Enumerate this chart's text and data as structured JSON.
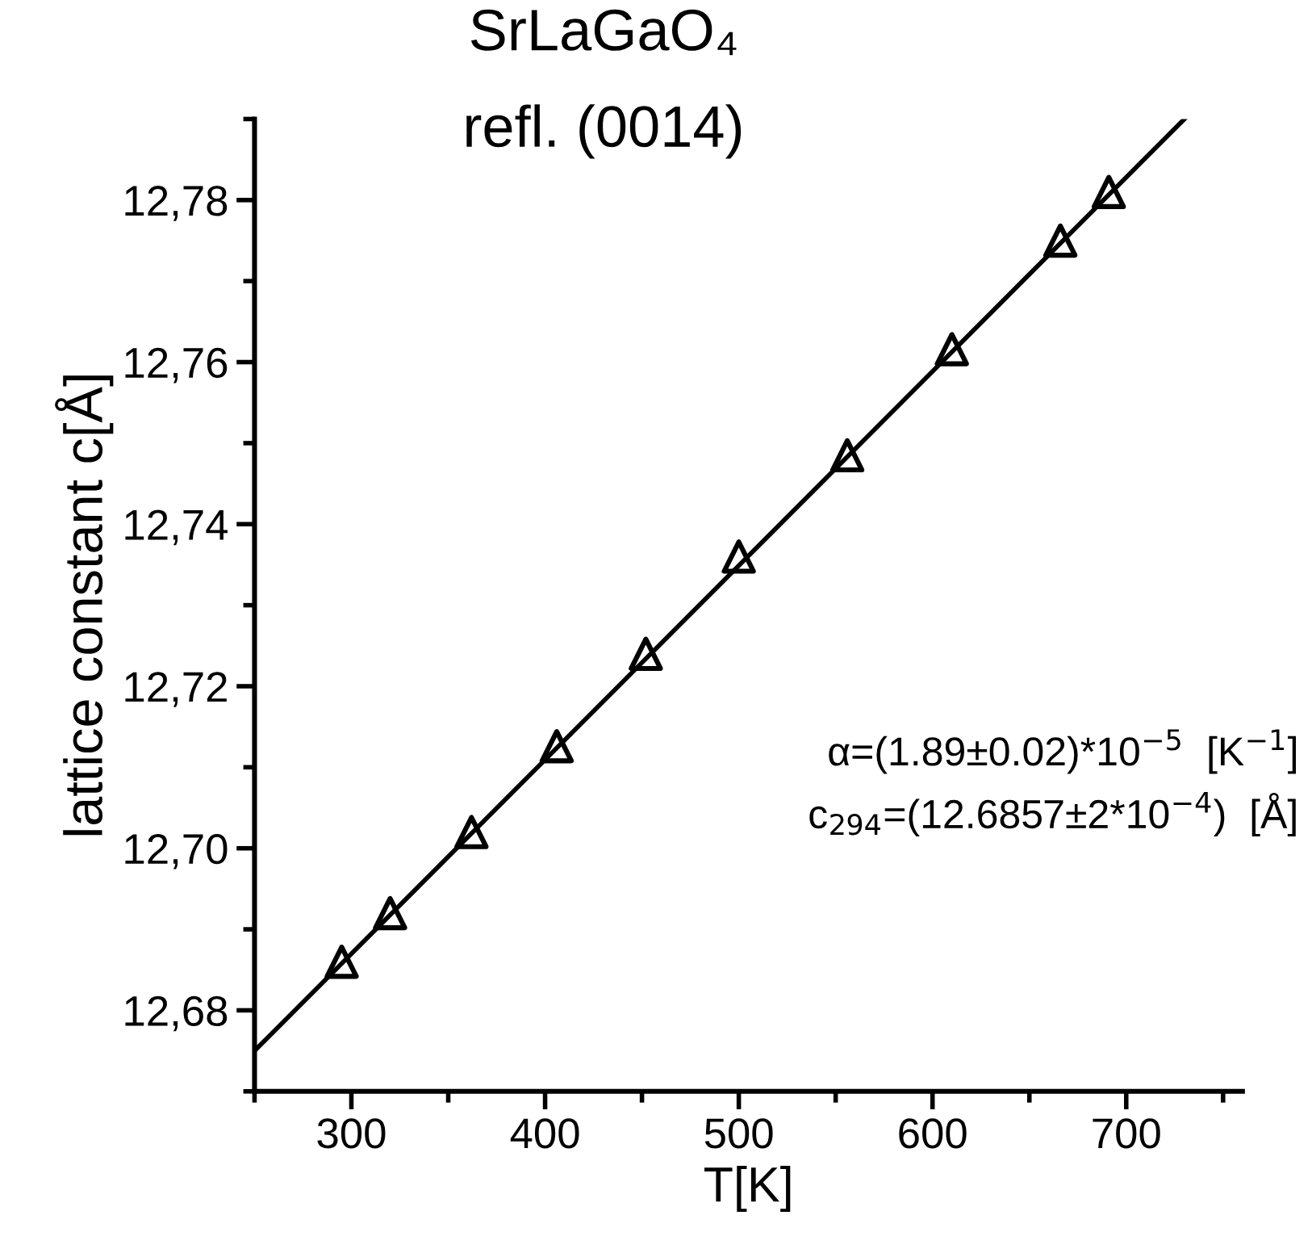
{
  "chart_data": {
    "type": "scatter",
    "title": "SrLaGaO₄",
    "subtitle": "refl. (0014)",
    "xlabel": "T[K]",
    "ylabel": "lattice constant c[Å]",
    "annotations": [
      "α=(1.89±0.02)*10$^{−5}$  [K$^{−1}$]",
      "c$_{294}$=(12.6857±2*10$^{−4}$)  [Å]"
    ],
    "series": [
      {
        "color": "#000000",
        "marker": "triangle",
        "x": [
          295,
          320,
          362,
          406,
          452,
          500,
          556,
          610,
          666,
          691
        ],
        "values": [
          12.686,
          12.692,
          12.702,
          12.7126,
          12.724,
          12.736,
          12.7485,
          12.7616,
          12.775,
          12.781
        ]
      },
      {
        "type": "line",
        "color": "#000000",
        "marker": "none",
        "line_style": "solid",
        "x": [
          250,
          730
        ],
        "values": [
          12.675,
          12.79
        ]
      }
    ],
    "xlim": [
      250,
      760
    ],
    "ylim": [
      12.67,
      12.79
    ],
    "xticks": [
      300,
      400,
      500,
      600,
      700
    ],
    "yticks": [
      {
        "value": 12.68,
        "label": "12,68"
      },
      {
        "value": 12.7,
        "label": "12,70"
      },
      {
        "value": 12.72,
        "label": "12,72"
      },
      {
        "value": 12.74,
        "label": "12,74"
      },
      {
        "value": 12.76,
        "label": "12,76"
      },
      {
        "value": 12.78,
        "label": "12,78"
      }
    ],
    "grid": false
  }
}
